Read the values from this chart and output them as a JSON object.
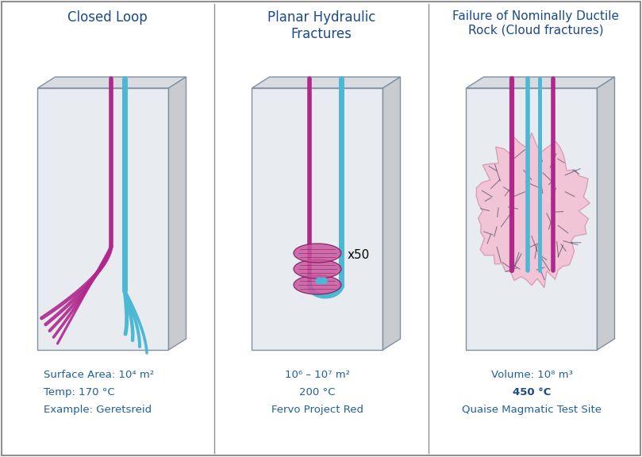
{
  "bg_color": "#ffffff",
  "blue_pipe": "#4db8d4",
  "magenta_pipe": "#b0288c",
  "pink_cloud": "#f0b0c8",
  "title_color": "#1a4a8a",
  "label_color": "#2060a0",
  "bold_label_color": "#1a4a8a",
  "panel_titles": [
    "Closed Loop",
    "Planar Hydraulic\nFractures",
    "Failure of Nominally Ductile\nRock (Cloud fractures)"
  ],
  "panel1_labels": [
    "Surface Area: 10⁴ m²",
    "Temp: 170 °C",
    "Example: Geretsreid"
  ],
  "panel2_labels": [
    "10⁶ – 10⁷ m²",
    "200 °C",
    "Fervo Project Red"
  ],
  "panel3_labels": [
    "Volume: 10⁸ m³",
    "450 °C",
    "Quaise Magmatic Test Site"
  ],
  "panel3_bold": [
    false,
    true,
    false
  ],
  "separator_color": "#909090",
  "outer_border_color": "#909090",
  "box_front_color": "#e8ecf0",
  "box_top_color": "#d8dce0",
  "box_right_color": "#c8ccd0",
  "box_edge_color": "#8090a0"
}
